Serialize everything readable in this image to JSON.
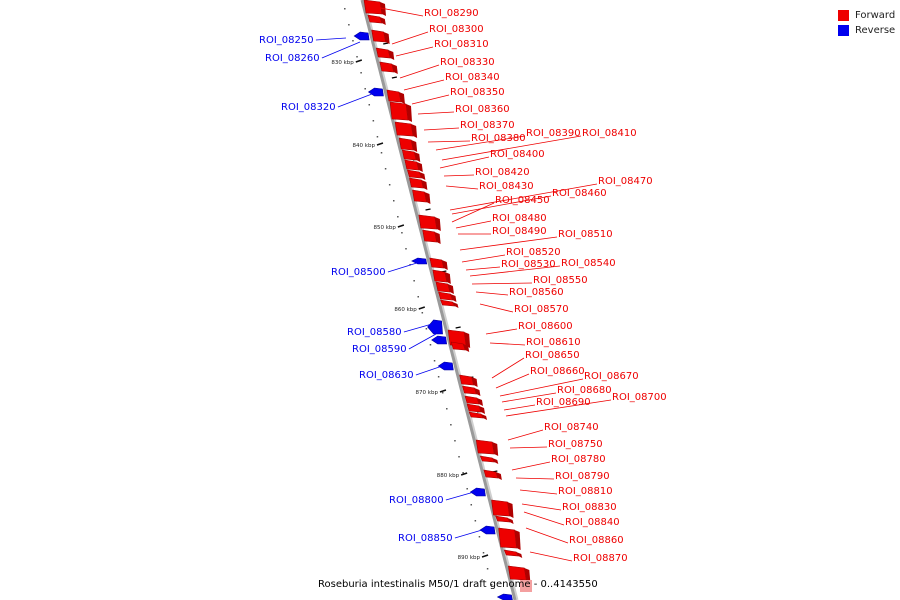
{
  "colors": {
    "forward": "#ee0000",
    "reverse": "#0000ee",
    "axis": "#9a9a9a",
    "tick": "#111111"
  },
  "legend": [
    {
      "label": "Forward",
      "color": "#ee0000"
    },
    {
      "label": "Reverse",
      "color": "#0000ee"
    }
  ],
  "footer": "Roseburia intestinalis M50/1 draft genome - 0..4143550",
  "scale_labels": [
    "830 kbp",
    "840 kbp",
    "850 kbp",
    "860 kbp",
    "870 kbp",
    "880 kbp",
    "890 kbp"
  ],
  "forward_labels": [
    "ROI_08290",
    "ROI_08300",
    "ROI_08310",
    "ROI_08330",
    "ROI_08340",
    "ROI_08350",
    "ROI_08360",
    "ROI_08370",
    "ROI_08380",
    "ROI_08390",
    "ROI_08410",
    "ROI_08400",
    "ROI_08420",
    "ROI_08430",
    "ROI_08470",
    "ROI_08460",
    "ROI_08450",
    "ROI_08480",
    "ROI_08490",
    "ROI_08510",
    "ROI_08520",
    "ROI_08530",
    "ROI_08540",
    "ROI_08550",
    "ROI_08560",
    "ROI_08570",
    "ROI_08600",
    "ROI_08610",
    "ROI_08650",
    "ROI_08660",
    "ROI_08670",
    "ROI_08680",
    "ROI_08690",
    "ROI_08700",
    "ROI_08740",
    "ROI_08750",
    "ROI_08780",
    "ROI_08790",
    "ROI_08810",
    "ROI_08830",
    "ROI_08840",
    "ROI_08860",
    "ROI_08870"
  ],
  "reverse_labels": [
    "ROI_08250",
    "ROI_08260",
    "ROI_08320",
    "ROI_08500",
    "ROI_08580",
    "ROI_08590",
    "ROI_08630",
    "ROI_08800",
    "ROI_08850"
  ]
}
